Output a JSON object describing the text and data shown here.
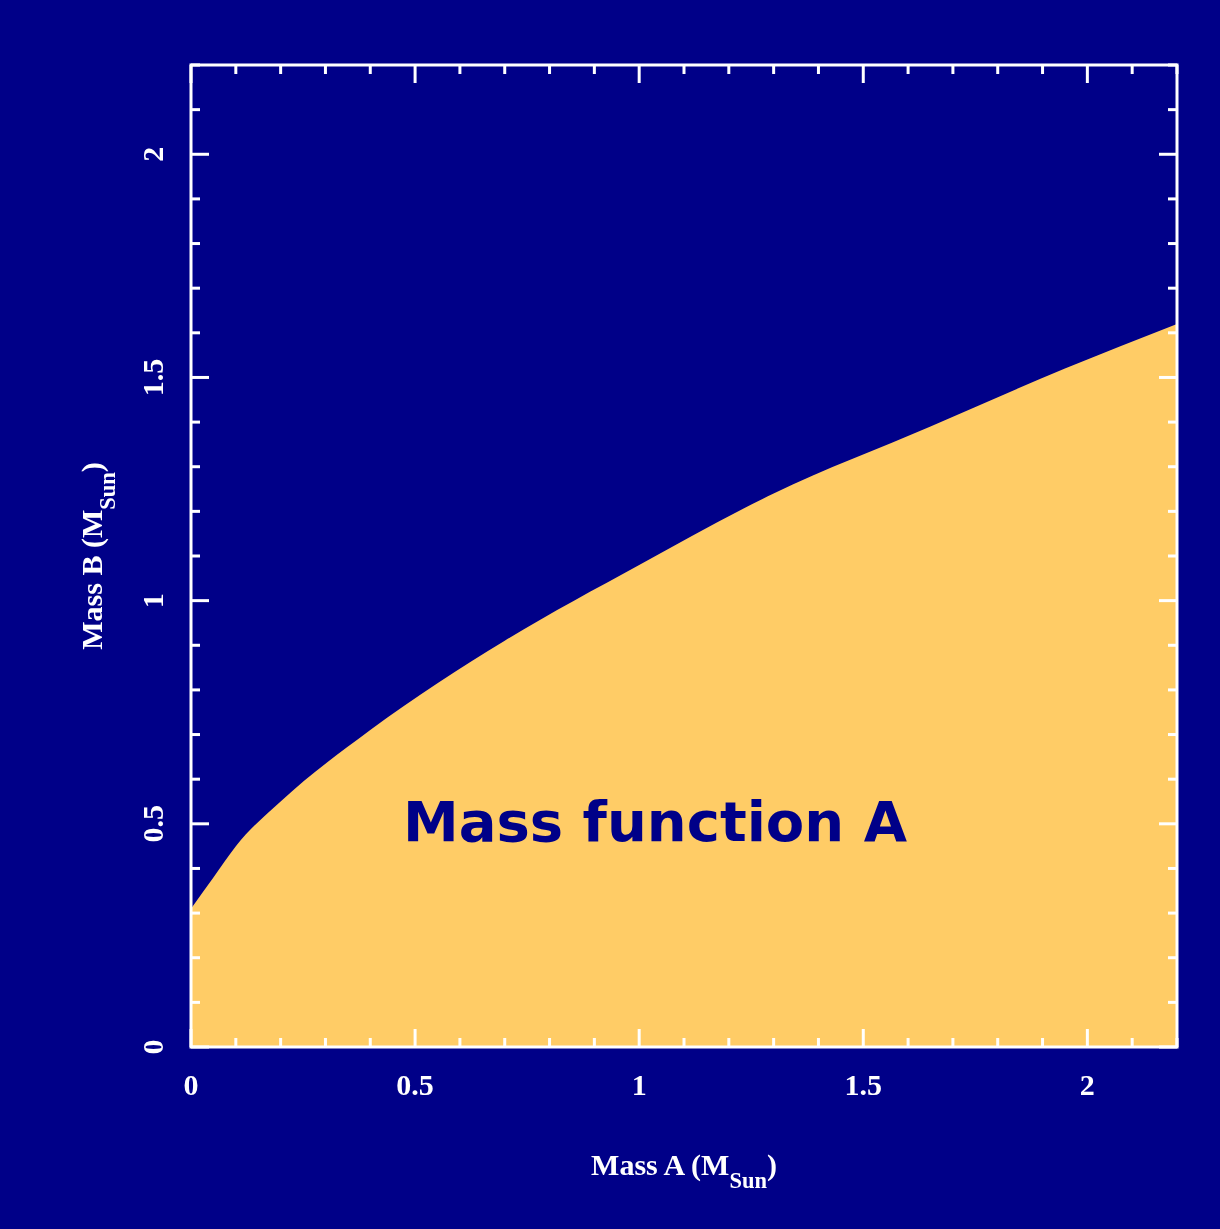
{
  "chart_data": {
    "type": "area",
    "xlabel": "Mass A (M$_{Sun}$)",
    "ylabel": "Mass B (M$_{Sun}$)",
    "x": [
      0,
      0.05,
      0.1,
      0.2,
      0.4,
      0.7,
      1,
      1.3,
      1.65,
      1.95,
      2.2
    ],
    "series": [
      {
        "color": "#ffcc66",
        "values": [
          0.31,
          0.38,
          0.45,
          0.55,
          0.71,
          0.91,
          1.08,
          1.24,
          1.39,
          1.52,
          1.62
        ]
      }
    ],
    "xlim": [
      0,
      2.2
    ],
    "ylim": [
      0,
      2.2
    ],
    "xticks": [
      0,
      {
        "value": 0.1,
        "label": null
      },
      {
        "value": 0.2,
        "label": null
      },
      {
        "value": 0.3,
        "label": null
      },
      {
        "value": 0.4,
        "label": null
      },
      0.5,
      {
        "value": 0.6,
        "label": null
      },
      {
        "value": 0.7,
        "label": null
      },
      {
        "value": 0.8,
        "label": null
      },
      {
        "value": 0.9,
        "label": null
      },
      1,
      {
        "value": 1.1,
        "label": null
      },
      {
        "value": 1.2,
        "label": null
      },
      {
        "value": 1.3,
        "label": null
      },
      {
        "value": 1.4,
        "label": null
      },
      1.5,
      {
        "value": 1.6,
        "label": null
      },
      {
        "value": 1.7,
        "label": null
      },
      {
        "value": 1.8,
        "label": null
      },
      {
        "value": 1.9,
        "label": null
      },
      2,
      {
        "value": 2.1,
        "label": null
      },
      {
        "value": 2.2,
        "label": null
      }
    ],
    "yticks": [
      0,
      {
        "value": 0.1,
        "label": null
      },
      {
        "value": 0.2,
        "label": null
      },
      {
        "value": 0.3,
        "label": null
      },
      {
        "value": 0.4,
        "label": null
      },
      0.5,
      {
        "value": 0.6,
        "label": null
      },
      {
        "value": 0.7,
        "label": null
      },
      {
        "value": 0.8,
        "label": null
      },
      {
        "value": 0.9,
        "label": null
      },
      1,
      {
        "value": 1.1,
        "label": null
      },
      {
        "value": 1.2,
        "label": null
      },
      {
        "value": 1.3,
        "label": null
      },
      {
        "value": 1.4,
        "label": null
      },
      1.5,
      {
        "value": 1.6,
        "label": null
      },
      {
        "value": 1.7,
        "label": null
      },
      {
        "value": 1.8,
        "label": null
      },
      {
        "value": 1.9,
        "label": null
      },
      2,
      {
        "value": 2.1,
        "label": null
      },
      {
        "value": 2.2,
        "label": null
      }
    ],
    "annotations": [
      "Mass function A"
    ]
  }
}
